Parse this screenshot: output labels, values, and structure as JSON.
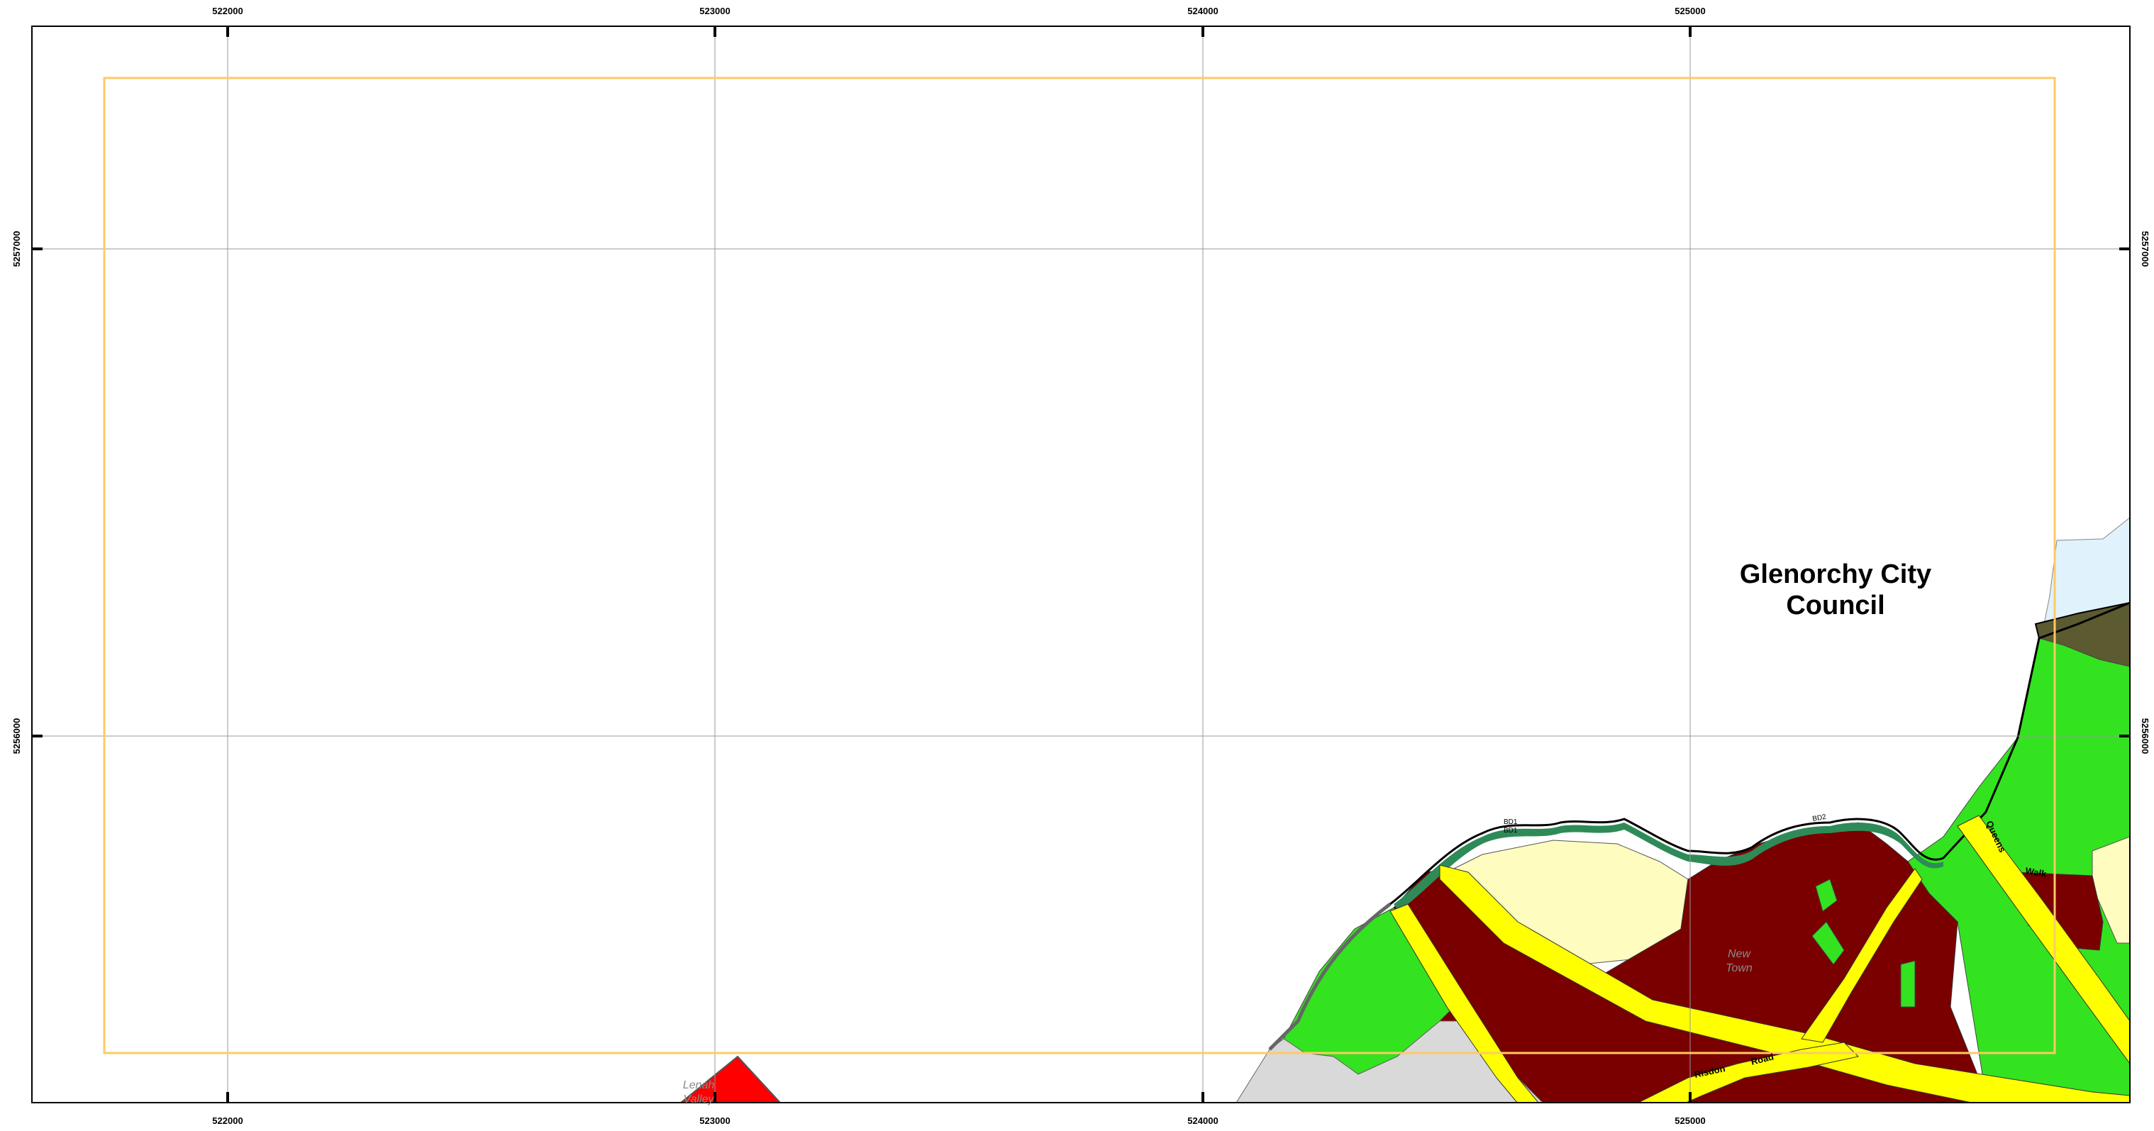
{
  "map": {
    "top_ticks": [
      "522000",
      "523000",
      "524000",
      "525000"
    ],
    "bottom_ticks": [
      "522000",
      "523000",
      "524000",
      "525000"
    ],
    "left_ticks": [
      "5257000",
      "5256000"
    ],
    "right_ticks": [
      "5257000",
      "5256000"
    ],
    "council_label_line1": "Glenorchy City",
    "council_label_line2": "Council",
    "place_new_town_1": "New",
    "place_new_town_2": "Town",
    "place_lenah_1": "Lenah",
    "place_lenah_2": "Valley",
    "road_risdon": "Risdon",
    "road_road": "Road",
    "road_queens": "Queens",
    "road_walk": "Walk",
    "label_bd1_a": "BD1",
    "label_bd1_b": "BD1",
    "label_bd2": "BD2"
  },
  "colors": {
    "residential": "#7a0000",
    "open_space": "#33e31f",
    "road_zone": "#ffff00",
    "light_industrial": "#fffcc0",
    "grey_zone": "#d9d9d9",
    "dark_olive": "#5c5a30",
    "water": "#e0f2fb",
    "study_area": "#ffc966",
    "red_zone": "#ff0000",
    "riparian": "#2e8b57"
  }
}
